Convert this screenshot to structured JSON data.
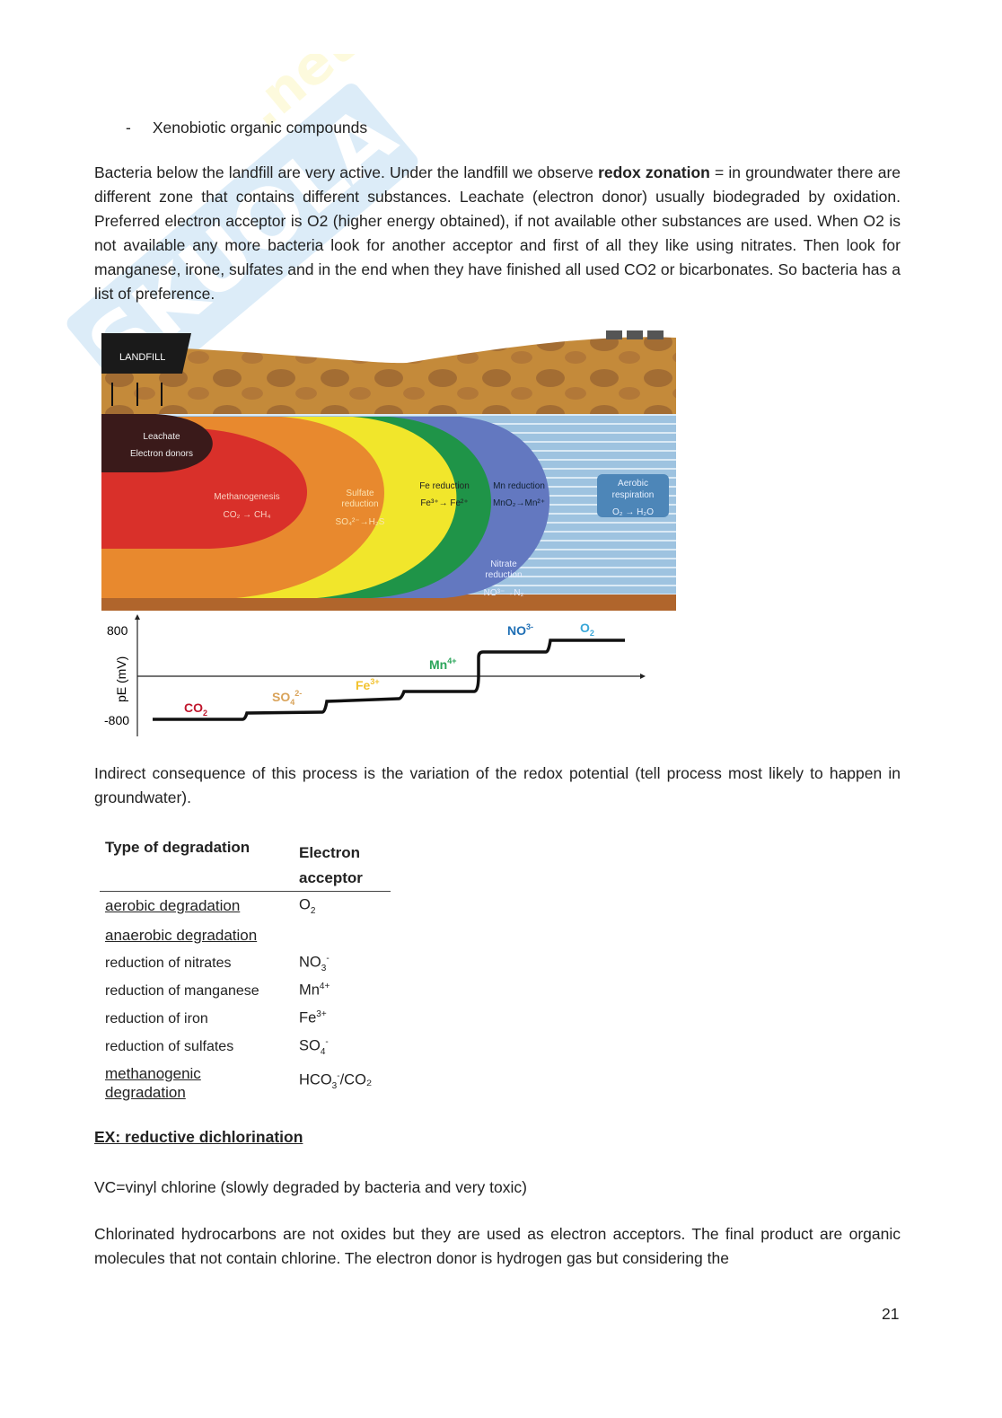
{
  "watermark": "Skuola.net",
  "bullet": {
    "marker": "-",
    "text": "Xenobiotic organic compounds"
  },
  "para1": {
    "before": "Bacteria below the landfill are very active. Under the landfill we observe ",
    "bold": "redox zonation",
    "after": " = in groundwater there are different zone that contains different substances. Leachate (electron donor) usually biodegraded by oxidation. Preferred electron acceptor is O2 (higher energy obtained), if not available other substances are used. When O2 is not available any more bacteria look for another acceptor and first of all they like using nitrates. Then look for manganese, irone, sulfates and in the end when they have finished all used CO2 or bicarbonates. So bacteria has a list of preference."
  },
  "diagram": {
    "landfill": "LANDFILL",
    "leachate": [
      "Leachate",
      "Electron donors"
    ],
    "zones": [
      {
        "title": [
          "Methanogenesis"
        ],
        "reaction": "CO₂ → CH₄",
        "color": "#d9302a"
      },
      {
        "title": [
          "Sulfate",
          "reduction"
        ],
        "reaction": "SO₄²⁻→H₂S",
        "color": "#e8892e"
      },
      {
        "title": [
          "Fe reduction"
        ],
        "reaction": "Fe³⁺→ Fe²⁺",
        "color": "#f1e62b"
      },
      {
        "title": [
          "Mn reduction"
        ],
        "reaction": "MnO₂→Mn²⁺",
        "color": "#1f9448"
      },
      {
        "title": [
          "Nitrate",
          "reduction"
        ],
        "reaction": "NO³⁻→N₂",
        "color": "#6378c0"
      },
      {
        "title": [
          "Aerobic",
          "respiration"
        ],
        "reaction": "O₂ → H₂O",
        "color": "#4d86b8"
      }
    ]
  },
  "chart": {
    "ylabel": "pE (mV)",
    "yticks": [
      "800",
      "-800"
    ],
    "steps": [
      {
        "label": "CO",
        "sub": "2",
        "sup": "",
        "color": "#c0172d"
      },
      {
        "label": "SO",
        "sub": "4",
        "sup": "2-",
        "color": "#d9a35a"
      },
      {
        "label": "Fe",
        "sub": "",
        "sup": "3+",
        "color": "#f2c22e"
      },
      {
        "label": "Mn",
        "sub": "",
        "sup": "4+",
        "color": "#2aa55a"
      },
      {
        "label": "NO",
        "sub": "",
        "sup": "3-",
        "color": "#1f6fb5"
      },
      {
        "label": "O",
        "sub": "2",
        "sup": "",
        "color": "#3aa7d8"
      }
    ]
  },
  "para2": "Indirect consequence of this process is the variation of the redox potential (tell process most likely to happen in groundwater).",
  "table": {
    "headers": [
      "Type of degradation",
      "Electron acceptor"
    ],
    "rows": [
      {
        "type": "aerobic degradation",
        "underline": true,
        "acc": "O",
        "sub": "2",
        "sup": "",
        "tail": ""
      },
      {
        "type": "anaerobic degradation",
        "underline": true,
        "acc": "",
        "sub": "",
        "sup": "",
        "tail": ""
      },
      {
        "type": "reduction of nitrates",
        "underline": false,
        "acc": "NO",
        "sub": "3",
        "sup": "-",
        "tail": ""
      },
      {
        "type": "reduction of manganese",
        "underline": false,
        "acc": "Mn",
        "sub": "",
        "sup": "4+",
        "tail": ""
      },
      {
        "type": "reduction of iron",
        "underline": false,
        "acc": "Fe",
        "sub": "",
        "sup": "3+",
        "tail": ""
      },
      {
        "type": "reduction of sulfates",
        "underline": false,
        "acc": "SO",
        "sub": "4",
        "sup": "-",
        "tail": ""
      },
      {
        "type": "methanogenic degradation",
        "underline": true,
        "acc": "HCO",
        "sub": "3",
        "sup": "-",
        "tail": "/CO₂"
      }
    ]
  },
  "ex_heading": "EX: reductive dichlorination",
  "para3": "VC=vinyl chlorine (slowly degraded by bacteria and very toxic)",
  "para4": "Chlorinated hydrocarbons are not oxides but they are used as electron acceptors. The final product are organic molecules that not contain chlorine. The electron donor is hydrogen gas but considering the",
  "page_number": "21"
}
